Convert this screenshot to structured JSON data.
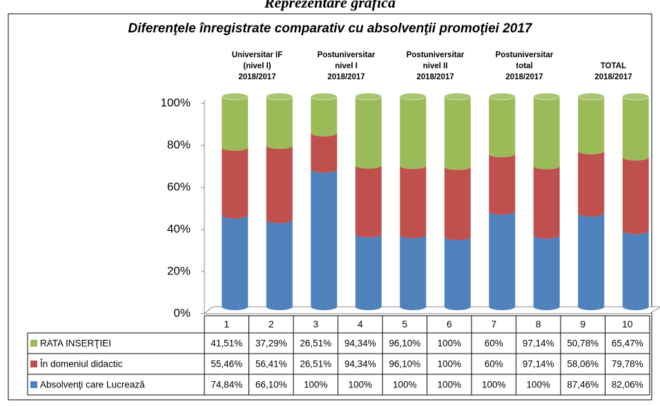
{
  "chart_data": {
    "type": "bar",
    "stacked": "percent",
    "heading": "Reprezentare grafică",
    "title": "Diferenţele înregistrate comparativ cu absolvenţii  promoţiei 2017",
    "groups": [
      [
        "Universitar IF",
        "(nivel I)",
        "2018/2017"
      ],
      [
        "Postuniversitar",
        "nivel I",
        "2018/2017"
      ],
      [
        "Postuniversitar",
        "nivel II",
        "2018/2017"
      ],
      [
        "Postuniversitar",
        "total",
        "2018/2017"
      ],
      [
        "TOTAL",
        "2018/2017"
      ]
    ],
    "categories": [
      "1",
      "2",
      "3",
      "4",
      "5",
      "6",
      "7",
      "8",
      "9",
      "10"
    ],
    "ylim": [
      0,
      100
    ],
    "yticks": [
      {
        "value": 0,
        "label": "0%"
      },
      {
        "value": 20,
        "label": "20%"
      },
      {
        "value": 40,
        "label": "40%"
      },
      {
        "value": 60,
        "label": "60%"
      },
      {
        "value": 80,
        "label": "80%"
      },
      {
        "value": 100,
        "label": "100%"
      }
    ],
    "series": [
      {
        "name": "Absolvenţi care Lucrează",
        "color": "#4f81bd",
        "values": [
          74.84,
          66.1,
          100,
          100,
          100,
          100,
          100,
          100,
          87.46,
          82.06
        ],
        "value_labels": [
          "74,84%",
          "66,10%",
          "100%",
          "100%",
          "100%",
          "100%",
          "100%",
          "100%",
          "87,46%",
          "82,06%"
        ]
      },
      {
        "name": "În domeniul didactic",
        "color": "#c0504d",
        "values": [
          55.46,
          56.41,
          26.51,
          94.34,
          96.1,
          100,
          60,
          97.14,
          58.06,
          79.78
        ],
        "value_labels": [
          "55,46%",
          "56,41%",
          "26,51%",
          "94,34%",
          "96,10%",
          "100%",
          "60%",
          "97,14%",
          "58,06%",
          "79,78%"
        ]
      },
      {
        "name": "RATA INSERŢIEI",
        "color": "#9bbb59",
        "values": [
          41.51,
          37.29,
          26.51,
          94.34,
          96.1,
          100,
          60,
          97.14,
          50.78,
          65.47
        ],
        "value_labels": [
          "41,51%",
          "37,29%",
          "26,51%",
          "94,34%",
          "96,10%",
          "100%",
          "60%",
          "97,14%",
          "50,78%",
          "65,47%"
        ]
      }
    ]
  }
}
